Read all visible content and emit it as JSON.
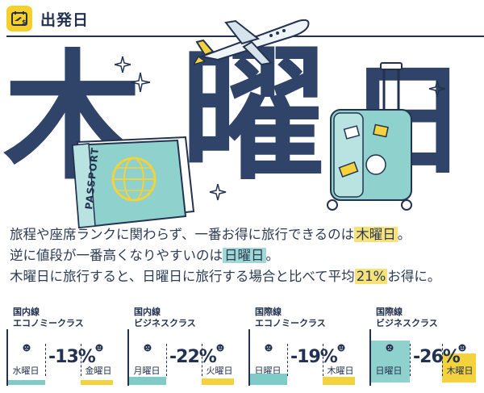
{
  "header": {
    "title": "出発日"
  },
  "hero": {
    "char1": "木",
    "char2": "曜",
    "char3": "日"
  },
  "description": {
    "line1_pre": "旅程や座席ランクに関わらず、一番お得に旅行できるのは",
    "line1_hl": "木曜日",
    "line1_post": "。",
    "line2_pre": "逆に値段が一番高くなりやすいのは",
    "line2_hl": "日曜日",
    "line2_post": "。",
    "line3_pre": "木曜日に旅行すると、日曜日に旅行する場合と比べて平均",
    "line3_hl": "21%",
    "line3_post": "お得に。"
  },
  "cards": [
    {
      "title1": "国内線",
      "title2": "エコノミークラス",
      "left_day": "水曜日",
      "pct": "-13%",
      "right_day": "金曜日"
    },
    {
      "title1": "国内線",
      "title2": "ビジネスクラス",
      "left_day": "月曜日",
      "pct": "-22%",
      "right_day": "火曜日"
    },
    {
      "title1": "国際線",
      "title2": "エコノミークラス",
      "left_day": "日曜日",
      "pct": "-19%",
      "right_day": "木曜日"
    },
    {
      "title1": "国際線",
      "title2": "ビジネスクラス",
      "left_day": "日曜日",
      "pct": "-26%",
      "right_day": "木曜日"
    }
  ],
  "colors": {
    "navy": "#2f4468",
    "yellow": "#f3d23d",
    "teal": "#8fd1cd"
  }
}
